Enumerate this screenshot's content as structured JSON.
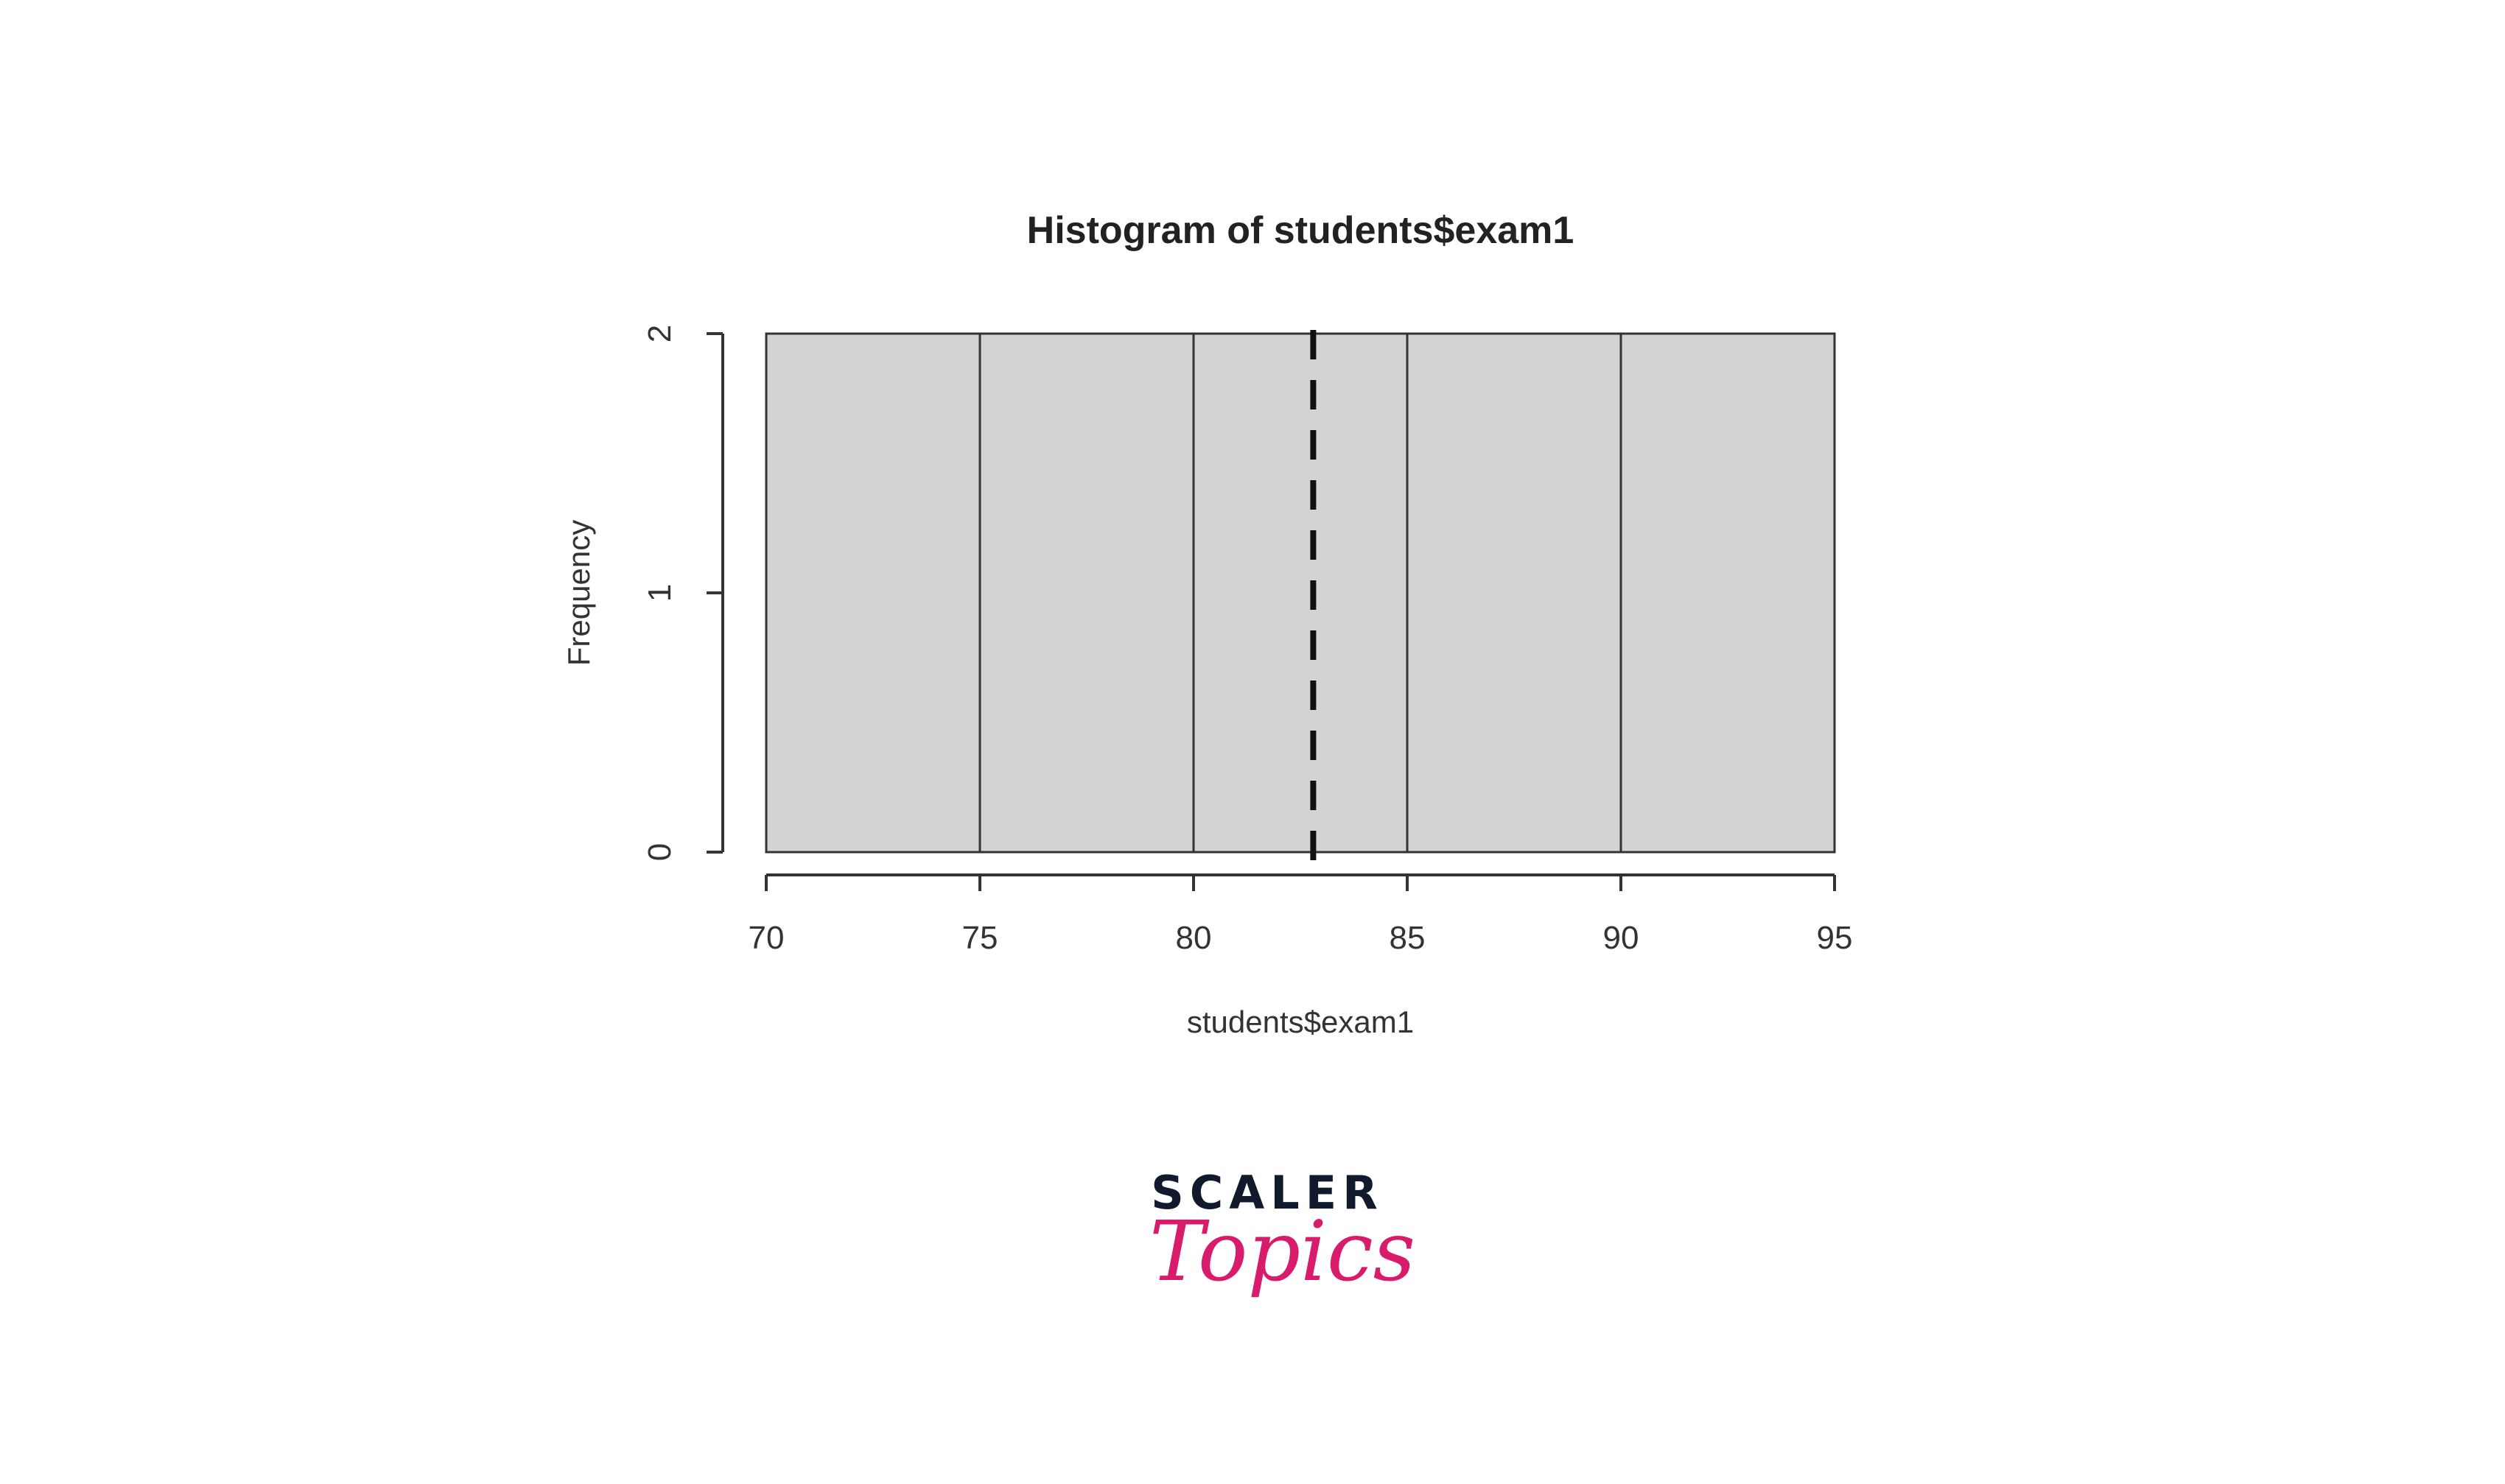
{
  "chart_data": {
    "type": "bar",
    "title": "Histogram of students$exam1",
    "xlabel": "students$exam1",
    "ylabel": "Frequency",
    "breaks": [
      70,
      75,
      80,
      85,
      90,
      95
    ],
    "values": [
      2,
      2,
      2,
      2,
      2
    ],
    "xlim": [
      70,
      95
    ],
    "ylim": [
      0,
      2
    ],
    "xticks": [
      "70",
      "75",
      "80",
      "85",
      "90",
      "95"
    ],
    "yticks": [
      "0",
      "1",
      "2"
    ],
    "mean_line": 82.8,
    "grid": false,
    "colors": {
      "bar_fill": "#d3d3d3",
      "bar_border": "#333333",
      "mean_line": "#111111"
    }
  },
  "logo": {
    "line1": "SCALER",
    "line2": "Topics",
    "colors": {
      "line1": "#111a2c",
      "line2": "#d81b6a"
    }
  }
}
